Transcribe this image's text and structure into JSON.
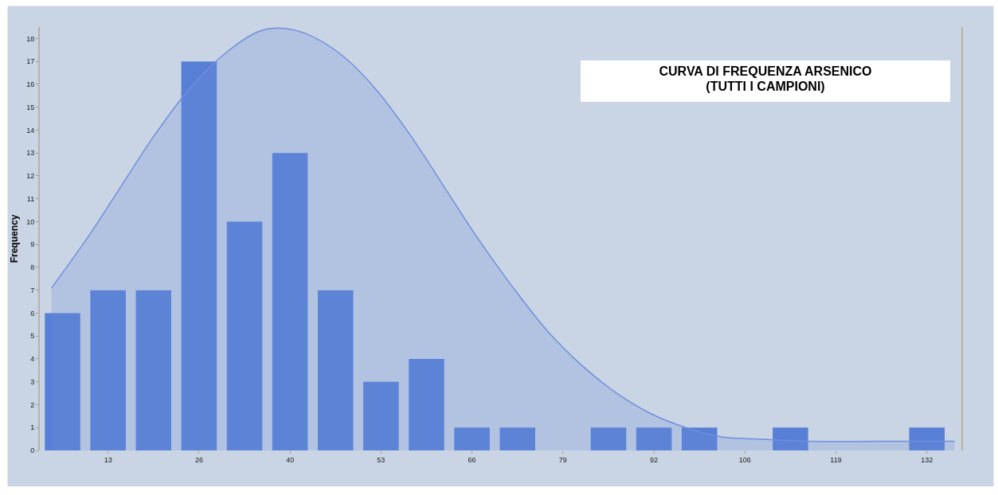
{
  "chart_data": {
    "type": "histogram",
    "title": "CURVA DI FREQUENZA ARSENICO\n(TUTTI I CAMPIONI)",
    "ylabel": "Frequency",
    "bins": [
      3.3,
      9.9,
      16.5,
      23.1,
      29.7,
      36.3,
      42.9,
      49.5,
      56.1,
      62.7,
      69.3,
      75.9,
      82.5,
      89.1,
      95.7,
      102.3,
      108.9,
      115.5,
      122.1,
      128.7,
      135.3
    ],
    "values": [
      6,
      7,
      7,
      17,
      10,
      13,
      7,
      3,
      4,
      1,
      1,
      0,
      1,
      1,
      1,
      0,
      1,
      0,
      0,
      1
    ],
    "color": "#577fd6",
    "series": [
      {
        "type": "area",
        "color": "#6f8fdc",
        "x": [
          5,
          10,
          15,
          20,
          25,
          30,
          35,
          38.5,
          42,
          47,
          52,
          57,
          62,
          67,
          72,
          77,
          82,
          87,
          92,
          97,
          102,
          107,
          115,
          125,
          136
        ],
        "values": [
          7.1,
          9.2,
          11.5,
          13.8,
          15.8,
          17.3,
          18.3,
          18.45,
          18.2,
          17.3,
          15.8,
          13.8,
          11.5,
          9.2,
          7.1,
          5.2,
          3.7,
          2.5,
          1.6,
          1.0,
          0.6,
          0.5,
          0.4,
          0.4,
          0.4
        ]
      }
    ],
    "xlim": [
      3.3,
      137
    ],
    "xticks": [
      {
        "value": 13.2,
        "label": "13"
      },
      {
        "value": 26.4,
        "label": "26"
      },
      {
        "value": 39.6,
        "label": "40"
      },
      {
        "value": 52.8,
        "label": "53"
      },
      {
        "value": 66,
        "label": "66"
      },
      {
        "value": 79.2,
        "label": "79"
      },
      {
        "value": 92.4,
        "label": "92"
      },
      {
        "value": 105.6,
        "label": "106"
      },
      {
        "value": 118.8,
        "label": "119"
      },
      {
        "value": 132,
        "label": "132"
      }
    ],
    "ylim": [
      0,
      18.5
    ],
    "yticks": [
      0,
      1,
      2,
      3,
      4,
      5,
      6,
      7,
      8,
      9,
      10,
      11,
      12,
      13,
      14,
      15,
      16,
      17,
      18
    ],
    "grid": false
  }
}
